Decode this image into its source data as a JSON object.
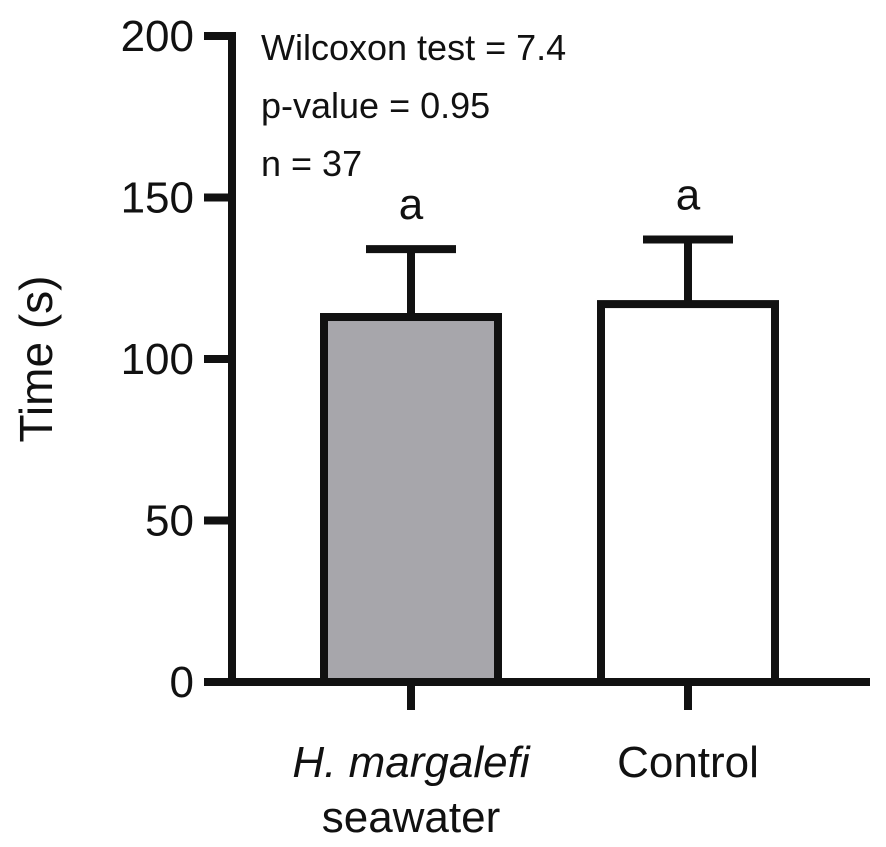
{
  "chart_data": {
    "type": "bar",
    "categories": [
      {
        "line1": "H. margalefi",
        "line1_italic": true,
        "line2": "seawater"
      },
      {
        "line1": "Control",
        "line1_italic": false,
        "line2": ""
      }
    ],
    "values": [
      113,
      117
    ],
    "error_upper": [
      134,
      137
    ],
    "significance_letters": [
      "a",
      "a"
    ],
    "bar_fills": [
      "#a7a6ab",
      "#ffffff"
    ],
    "bar_stroke": "#111111",
    "ylabel": "Time (s)",
    "xlabel": "",
    "ylim": [
      0,
      200
    ],
    "yticks": [
      "0",
      "50",
      "100",
      "150",
      "200"
    ],
    "annotations": [
      "Wilcoxon test = 7.4",
      "p-value = 0.95",
      "n = 37"
    ],
    "grid": false,
    "legend": "none"
  }
}
